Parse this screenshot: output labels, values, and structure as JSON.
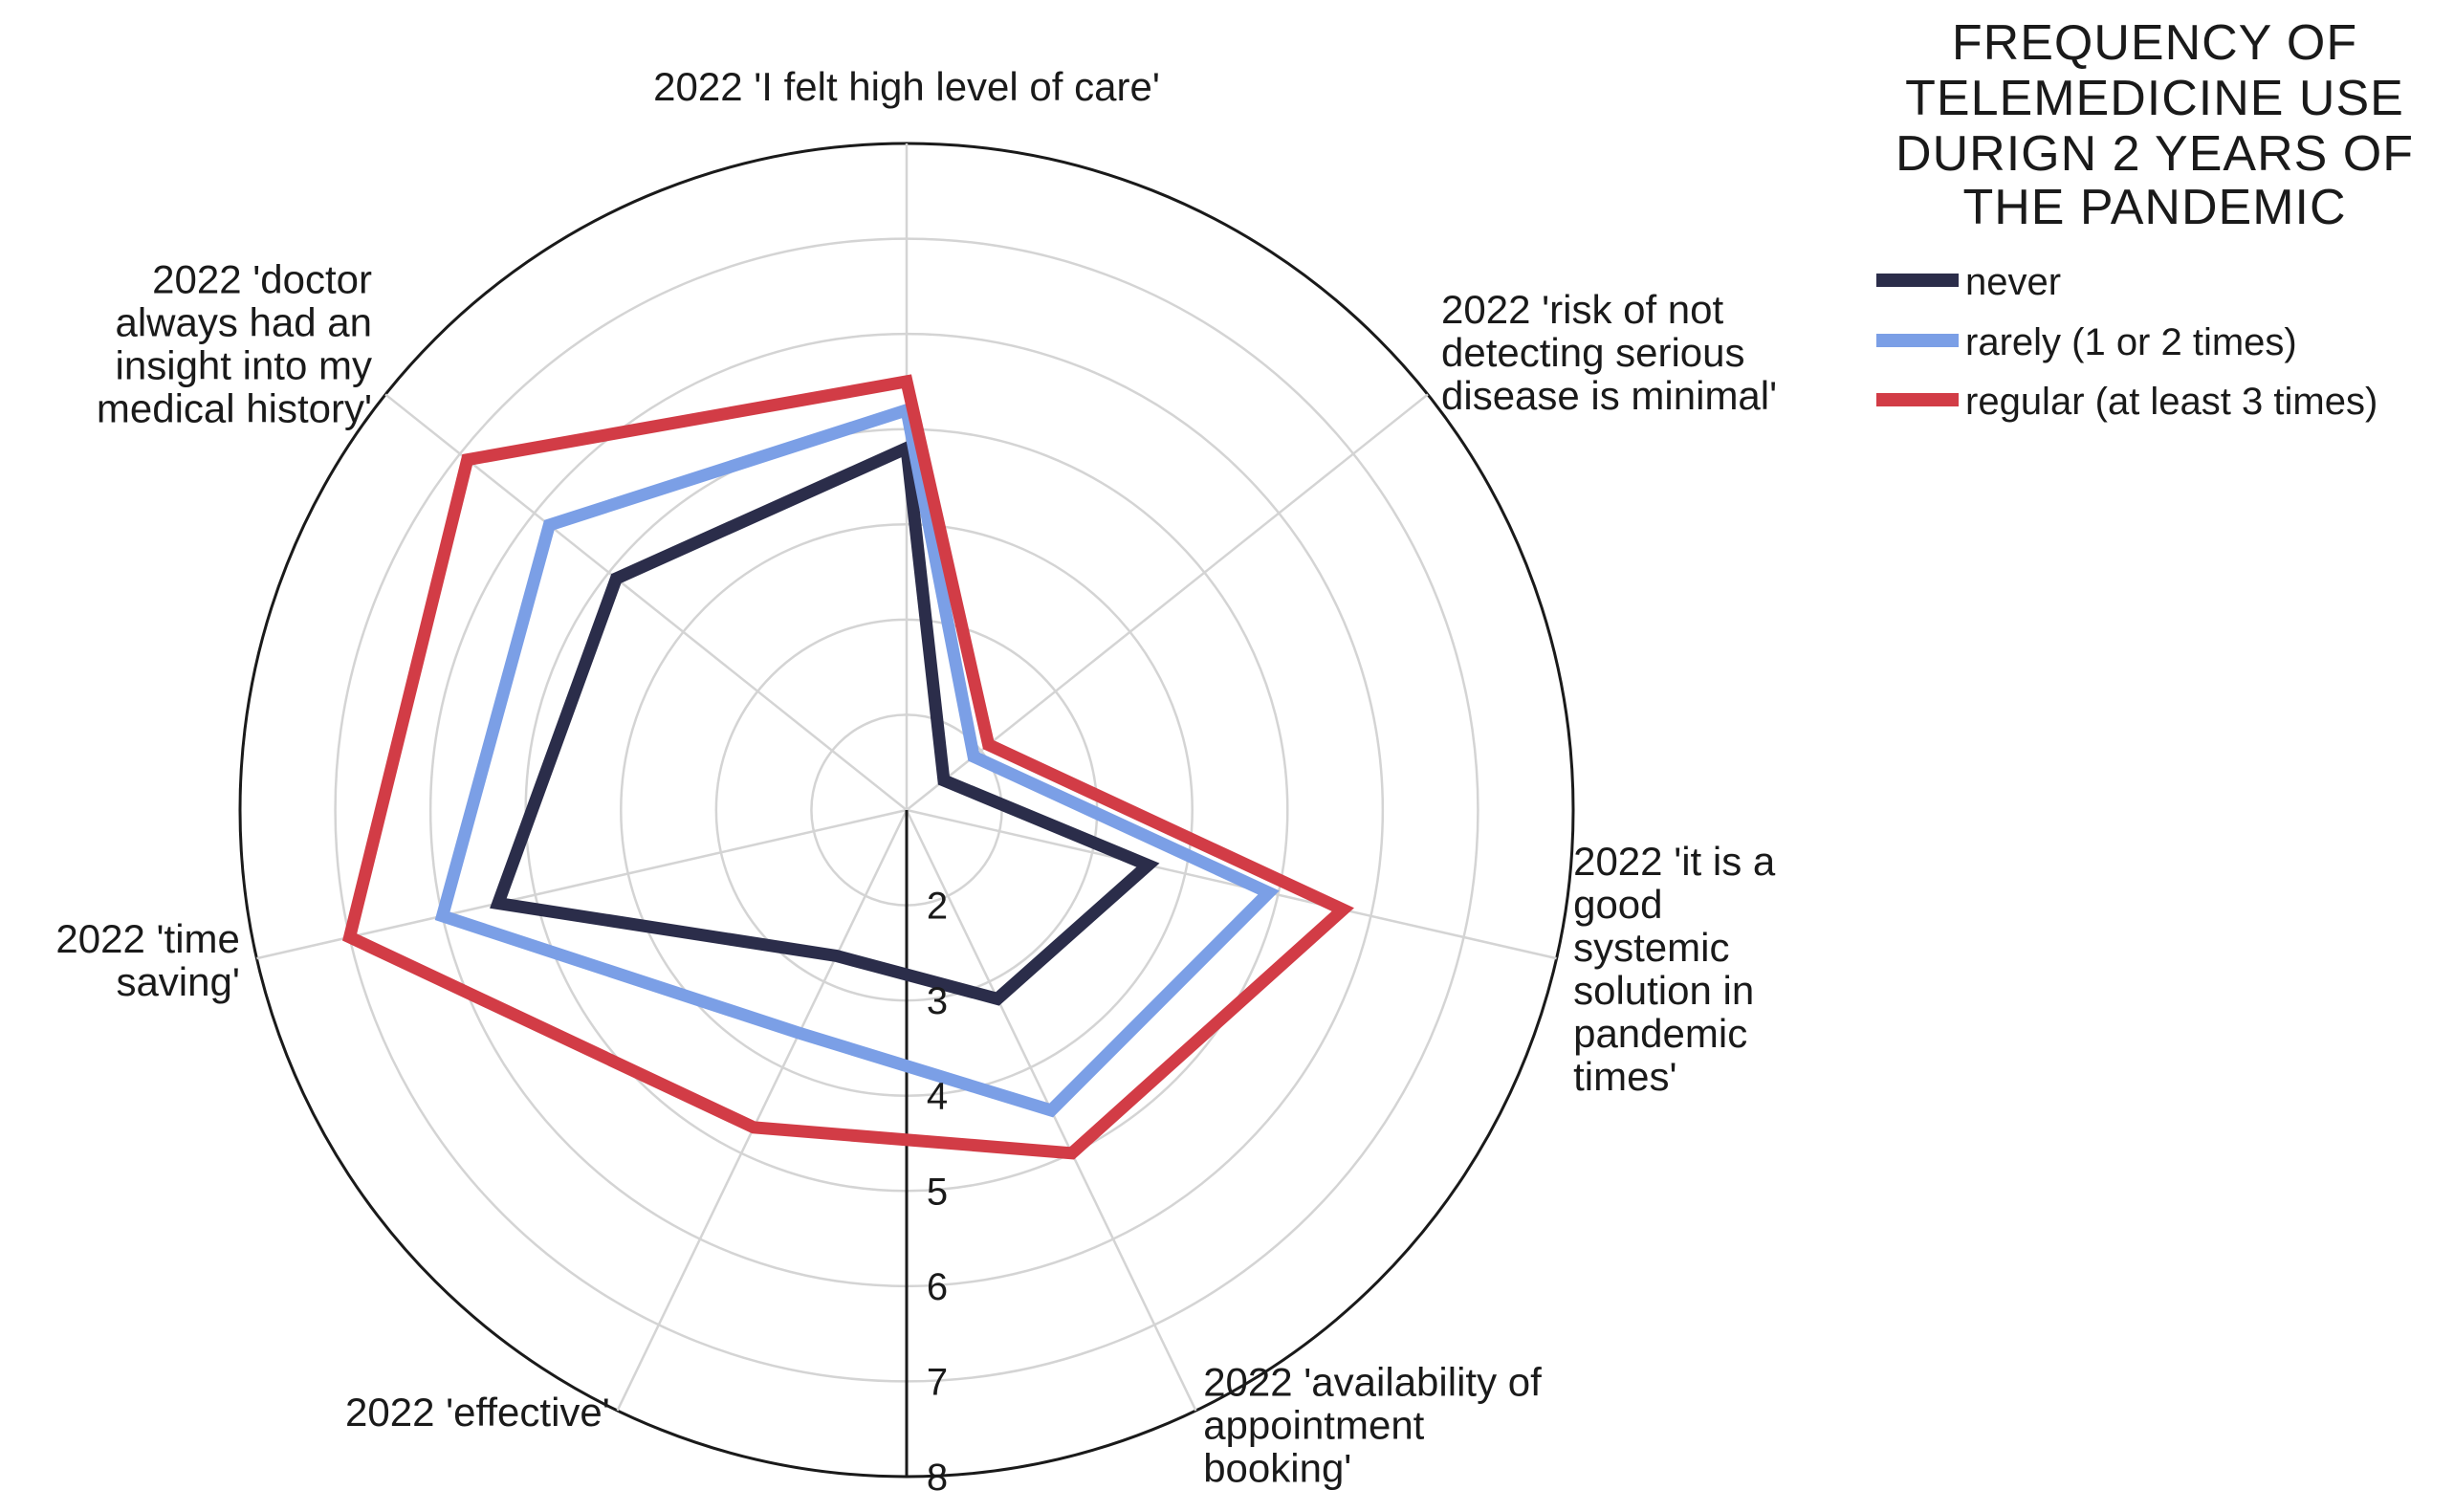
{
  "chart_data": {
    "type": "radar",
    "axes": [
      {
        "label_lines": [
          "2022  'I felt high level of care'"
        ]
      },
      {
        "label_lines": [
          "2022  'risk of not",
          "detecting serious",
          "disease is minimal'"
        ]
      },
      {
        "label_lines": [
          "2022 'it is a",
          "good",
          "systemic",
          "solution in",
          "pandemic",
          "times'"
        ]
      },
      {
        "label_lines": [
          "2022 'availability of",
          "appointment",
          "booking'"
        ]
      },
      {
        "label_lines": [
          "2022  'effective'"
        ]
      },
      {
        "label_lines": [
          "2022  'time",
          "saving'"
        ]
      },
      {
        "label_lines": [
          "2022 'doctor",
          "always had an",
          "insight into my",
          "medical history'"
        ]
      }
    ],
    "rlim": [
      1,
      8
    ],
    "grid_rings": [
      2,
      3,
      4,
      5,
      6,
      7,
      8
    ],
    "tick_labels": [
      "2",
      "3",
      "4",
      "5",
      "6",
      "7",
      "8"
    ],
    "grid": true,
    "series": [
      {
        "name": "never",
        "color": "#2b2d4a",
        "values": [
          4.8,
          1.5,
          3.6,
          3.2,
          2.7,
          5.4,
          4.9
        ]
      },
      {
        "name": "rarely (1 or 2 times)",
        "color": "#7b9fe6",
        "values": [
          5.2,
          1.9,
          4.9,
          4.5,
          3.6,
          6.0,
          5.8
        ]
      },
      {
        "name": "regular (at least 3 times)",
        "color": "#d23c46",
        "values": [
          5.5,
          2.1,
          5.7,
          5.0,
          4.7,
          7.0,
          6.9
        ]
      }
    ],
    "legend": {
      "title_lines": [
        "FREQUENCY OF",
        "TELEMEDICINE USE",
        "DURIGN 2 YEARS OF",
        "THE PANDEMIC"
      ],
      "position": "top-right"
    }
  }
}
